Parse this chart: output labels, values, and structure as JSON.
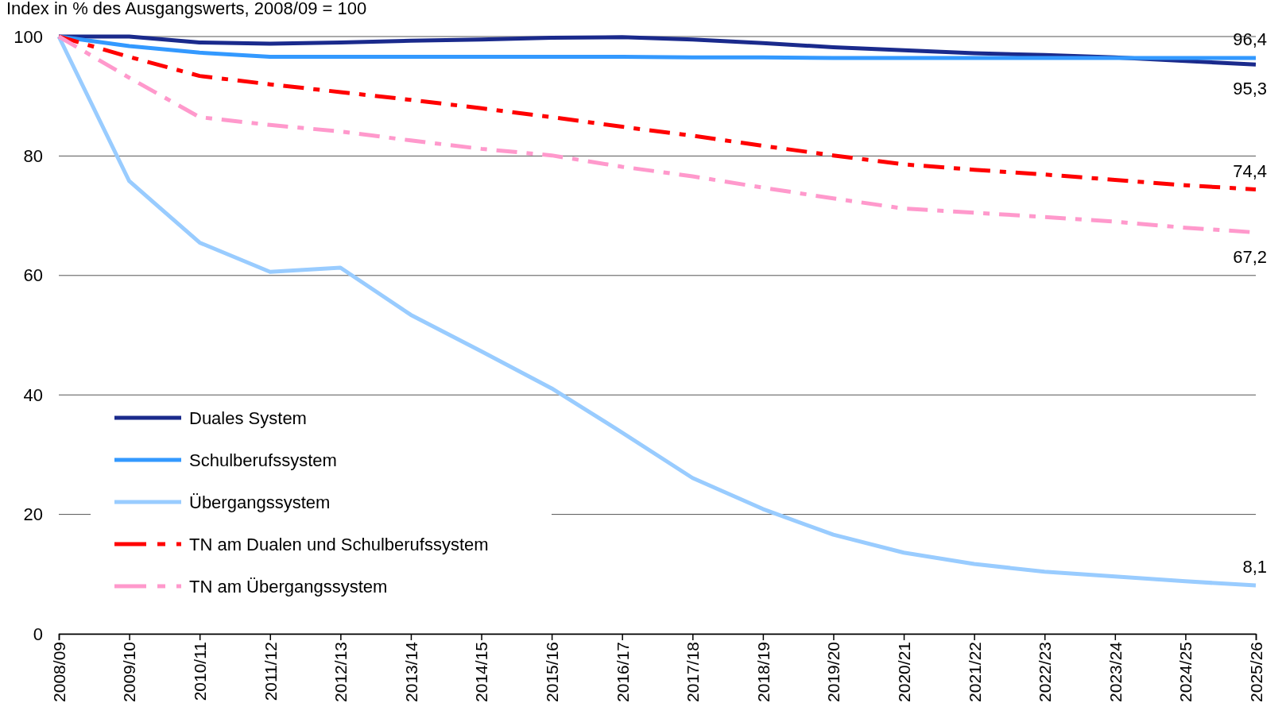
{
  "chart_data": {
    "type": "line",
    "ylabel": "Index in % des Ausgangswerts, 2008/09 = 100",
    "categories": [
      "2008/09",
      "2009/10",
      "2010/11",
      "2011/12",
      "2012/13",
      "2013/14",
      "2014/15",
      "2015/16",
      "2016/17",
      "2017/18",
      "2018/19",
      "2019/20",
      "2020/21",
      "2021/22",
      "2022/23",
      "2023/24",
      "2024/25",
      "2025/26"
    ],
    "ylim": [
      0,
      100
    ],
    "yticks": [
      0,
      20,
      40,
      60,
      80,
      100
    ],
    "grid": "y",
    "legend": "bottom left",
    "marker": "none",
    "series": [
      {
        "name": "Duales System",
        "color": "#1a2a8c",
        "line_style": "solid",
        "values": [
          100,
          100,
          99.0,
          98.8,
          99.0,
          99.3,
          99.5,
          99.8,
          99.9,
          99.5,
          98.9,
          98.2,
          97.7,
          97.2,
          96.9,
          96.5,
          95.9,
          95.3
        ],
        "value_labels": [
          null,
          null,
          null,
          null,
          null,
          null,
          null,
          null,
          null,
          null,
          null,
          null,
          null,
          null,
          null,
          null,
          null,
          "95,3"
        ]
      },
      {
        "name": "Schulberufssystem",
        "color": "#3399ff",
        "line_style": "solid",
        "values": [
          100,
          98.4,
          97.3,
          96.6,
          96.6,
          96.6,
          96.6,
          96.6,
          96.6,
          96.5,
          96.5,
          96.4,
          96.4,
          96.4,
          96.4,
          96.4,
          96.4,
          96.4
        ],
        "value_labels": [
          null,
          null,
          null,
          null,
          null,
          null,
          null,
          null,
          null,
          null,
          null,
          null,
          null,
          null,
          null,
          null,
          null,
          "96,4"
        ]
      },
      {
        "name": "Übergangssystem",
        "color": "#99ccff",
        "line_style": "solid",
        "values": [
          100,
          75.8,
          65.5,
          60.6,
          61.3,
          53.4,
          47.3,
          41.1,
          33.7,
          26.1,
          20.9,
          16.6,
          13.6,
          11.7,
          10.4,
          9.6,
          8.8,
          8.1
        ],
        "value_labels": [
          null,
          null,
          null,
          null,
          null,
          null,
          null,
          null,
          null,
          null,
          null,
          null,
          null,
          null,
          null,
          null,
          null,
          "8,1"
        ]
      },
      {
        "name": "TN am Dualen und Schulberufssystem",
        "color": "#ff0000",
        "line_style": "dashed",
        "values": [
          100,
          96.6,
          93.4,
          92.0,
          90.7,
          89.4,
          88.0,
          86.5,
          84.9,
          83.4,
          81.7,
          80.1,
          78.6,
          77.7,
          76.9,
          76.0,
          75.1,
          74.4
        ],
        "value_labels": [
          null,
          null,
          null,
          null,
          null,
          null,
          null,
          null,
          null,
          null,
          null,
          null,
          null,
          null,
          null,
          null,
          null,
          "74,4"
        ]
      },
      {
        "name": "TN am Übergangssystem",
        "color": "#ff99cc",
        "line_style": "dashed",
        "values": [
          100,
          93.1,
          86.5,
          85.2,
          84.1,
          82.6,
          81.2,
          80.1,
          78.2,
          76.6,
          74.7,
          72.9,
          71.2,
          70.5,
          69.8,
          69.0,
          68.0,
          67.2
        ],
        "value_labels": [
          null,
          null,
          null,
          null,
          null,
          null,
          null,
          null,
          null,
          null,
          null,
          null,
          null,
          null,
          null,
          null,
          null,
          "67,2"
        ]
      }
    ]
  }
}
